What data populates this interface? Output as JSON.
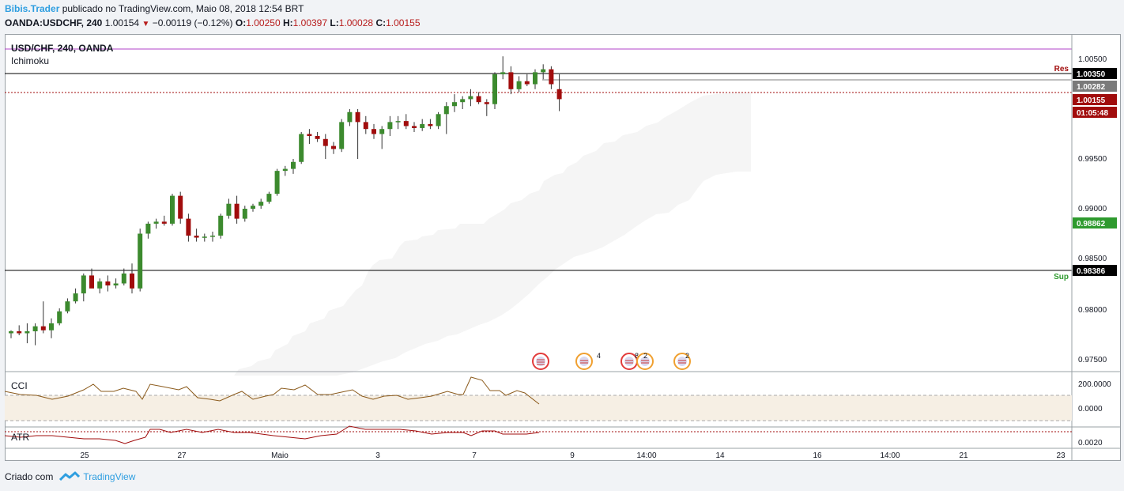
{
  "header": {
    "author": "Bibis.Trader",
    "published": "publicado no TradingView.com, Maio 08, 2018 12:54 BRT",
    "symbol": "OANDA:USDCHF, 240",
    "last": "1.00154",
    "change": "−0.00119 (−0.12%)",
    "o_label": "O:",
    "o_value": "1.00250",
    "h_label": "H:",
    "h_value": "1.00397",
    "l_label": "L:",
    "l_value": "1.00028",
    "c_label": "C:",
    "c_value": "1.00155"
  },
  "chart": {
    "title": "USD/CHF, 240, OANDA",
    "indicator": "Ichimoku",
    "res_label": "Res",
    "sup_label": "Sup",
    "colors": {
      "up": "#3c8a2e",
      "down": "#a10c0c",
      "cloud": "#f5f5f5",
      "resistance": "#000000",
      "purple": "#b042c8"
    }
  },
  "price_axis": {
    "ticks": [
      "1.00500",
      "0.99500",
      "0.99000",
      "0.98500",
      "0.98000",
      "0.97500"
    ],
    "badges": [
      {
        "text": "1.00350",
        "bg": "#000000"
      },
      {
        "text": "1.00282",
        "bg": "#7a7a7a"
      },
      {
        "text": "1.00155",
        "bg": "#a10c0c"
      },
      {
        "text": "01:05:48",
        "bg": "#a10c0c"
      },
      {
        "text": "0.98862",
        "bg": "#2e9a2e"
      },
      {
        "text": "0.98386",
        "bg": "#000000"
      }
    ]
  },
  "cci": {
    "label": "CCI",
    "ticks": [
      "200.0000",
      "0.0000"
    ]
  },
  "atr": {
    "label": "ATR",
    "ticks": [
      "0.0020"
    ]
  },
  "time_axis": [
    "25",
    "27",
    "Maio",
    "3",
    "7",
    "9",
    "14:00",
    "14",
    "16",
    "14:00",
    "21",
    "23"
  ],
  "events": [
    {
      "count": ""
    },
    {
      "count": "4"
    },
    {
      "count": "8"
    },
    {
      "count": "2"
    },
    {
      "count": "2"
    }
  ],
  "chart_data": {
    "type": "candlestick",
    "title": "USD/CHF, 240, OANDA",
    "ylim": [
      0.9725,
      1.0065
    ],
    "levels": {
      "resistance": 1.0035,
      "support": 0.98386,
      "purple": 1.0059
    },
    "candles": [
      [
        0.978,
        0.9783,
        0.9775,
        0.9782
      ],
      [
        0.9782,
        0.9788,
        0.9778,
        0.978
      ],
      [
        0.978,
        0.979,
        0.977,
        0.9782
      ],
      [
        0.9782,
        0.979,
        0.9768,
        0.9787
      ],
      [
        0.9787,
        0.9812,
        0.978,
        0.9783
      ],
      [
        0.9783,
        0.9795,
        0.9775,
        0.979
      ],
      [
        0.979,
        0.9805,
        0.9788,
        0.9802
      ],
      [
        0.9802,
        0.9815,
        0.98,
        0.9812
      ],
      [
        0.9812,
        0.9825,
        0.981,
        0.982
      ],
      [
        0.982,
        0.984,
        0.9812,
        0.9838
      ],
      [
        0.9838,
        0.9845,
        0.9828,
        0.9825
      ],
      [
        0.9825,
        0.9835,
        0.982,
        0.9832
      ],
      [
        0.9832,
        0.9838,
        0.9822,
        0.9828
      ],
      [
        0.9828,
        0.9835,
        0.9825,
        0.983
      ],
      [
        0.983,
        0.9845,
        0.9828,
        0.984
      ],
      [
        0.984,
        0.985,
        0.982,
        0.9825
      ],
      [
        0.9825,
        0.9885,
        0.9822,
        0.988
      ],
      [
        0.988,
        0.9892,
        0.9875,
        0.989
      ],
      [
        0.989,
        0.9895,
        0.9885,
        0.9892
      ],
      [
        0.9892,
        0.9898,
        0.9888,
        0.989
      ],
      [
        0.989,
        0.992,
        0.9888,
        0.9918
      ],
      [
        0.9918,
        0.9922,
        0.989,
        0.9895
      ],
      [
        0.9895,
        0.99,
        0.9872,
        0.9878
      ],
      [
        0.9878,
        0.9885,
        0.9872,
        0.9876
      ],
      [
        0.9876,
        0.988,
        0.9872,
        0.9877
      ],
      [
        0.9877,
        0.9882,
        0.9872,
        0.9878
      ],
      [
        0.9878,
        0.99,
        0.9875,
        0.9898
      ],
      [
        0.9898,
        0.9915,
        0.9895,
        0.991
      ],
      [
        0.991,
        0.9918,
        0.989,
        0.9895
      ],
      [
        0.9895,
        0.9908,
        0.9892,
        0.9905
      ],
      [
        0.9905,
        0.991,
        0.9902,
        0.9908
      ],
      [
        0.9908,
        0.9915,
        0.9905,
        0.9912
      ],
      [
        0.9912,
        0.9922,
        0.991,
        0.992
      ],
      [
        0.992,
        0.9945,
        0.9918,
        0.9943
      ],
      [
        0.9943,
        0.9948,
        0.9938,
        0.9945
      ],
      [
        0.9945,
        0.9955,
        0.994,
        0.9952
      ],
      [
        0.9952,
        0.9982,
        0.995,
        0.998
      ],
      [
        0.998,
        0.9985,
        0.997,
        0.9978
      ],
      [
        0.9978,
        0.9982,
        0.9972,
        0.9975
      ],
      [
        0.9975,
        0.998,
        0.9955,
        0.9968
      ],
      [
        0.9968,
        0.9972,
        0.996,
        0.9965
      ],
      [
        0.9965,
        0.9995,
        0.9962,
        0.9992
      ],
      [
        0.9992,
        1.0005,
        0.9988,
        1.0002
      ],
      [
        1.0002,
        1.0005,
        0.9955,
        0.9992
      ],
      [
        0.9992,
        0.9998,
        0.998,
        0.9985
      ],
      [
        0.9985,
        0.999,
        0.9975,
        0.998
      ],
      [
        0.998,
        0.9988,
        0.9965,
        0.9985
      ],
      [
        0.9985,
        0.9998,
        0.9978,
        0.9992
      ],
      [
        0.9992,
        0.9998,
        0.9985,
        0.9993
      ],
      [
        0.9993,
        1.0,
        0.9985,
        0.9988
      ],
      [
        0.9988,
        0.9992,
        0.9982,
        0.9986
      ],
      [
        0.9986,
        0.9995,
        0.9983,
        0.999
      ],
      [
        0.999,
        0.9995,
        0.9985,
        0.9988
      ],
      [
        0.9988,
        1.0002,
        0.9985,
        1.0
      ],
      [
        1.0,
        1.0012,
        0.998,
        1.0008
      ],
      [
        1.0008,
        1.002,
        1.0002,
        1.0012
      ],
      [
        1.0012,
        1.0018,
        1.0005,
        1.0015
      ],
      [
        1.0015,
        1.0025,
        1.0008,
        1.0018
      ],
      [
        1.0018,
        1.0022,
        1.001,
        1.0012
      ],
      [
        1.0012,
        1.0015,
        0.9998,
        1.001
      ],
      [
        1.001,
        1.0042,
        1.0005,
        1.004
      ],
      [
        1.004,
        1.0058,
        1.0035,
        1.0042
      ],
      [
        1.0042,
        1.0048,
        1.002,
        1.0025
      ],
      [
        1.0025,
        1.0038,
        1.0022,
        1.0033
      ],
      [
        1.0033,
        1.004,
        1.0028,
        1.003
      ],
      [
        1.003,
        1.0045,
        1.0025,
        1.0042
      ],
      [
        1.0042,
        1.005,
        1.0035,
        1.0045
      ],
      [
        1.0045,
        1.0048,
        1.0025,
        1.003
      ],
      [
        1.0025,
        1.004,
        1.0003,
        1.0015
      ]
    ]
  }
}
